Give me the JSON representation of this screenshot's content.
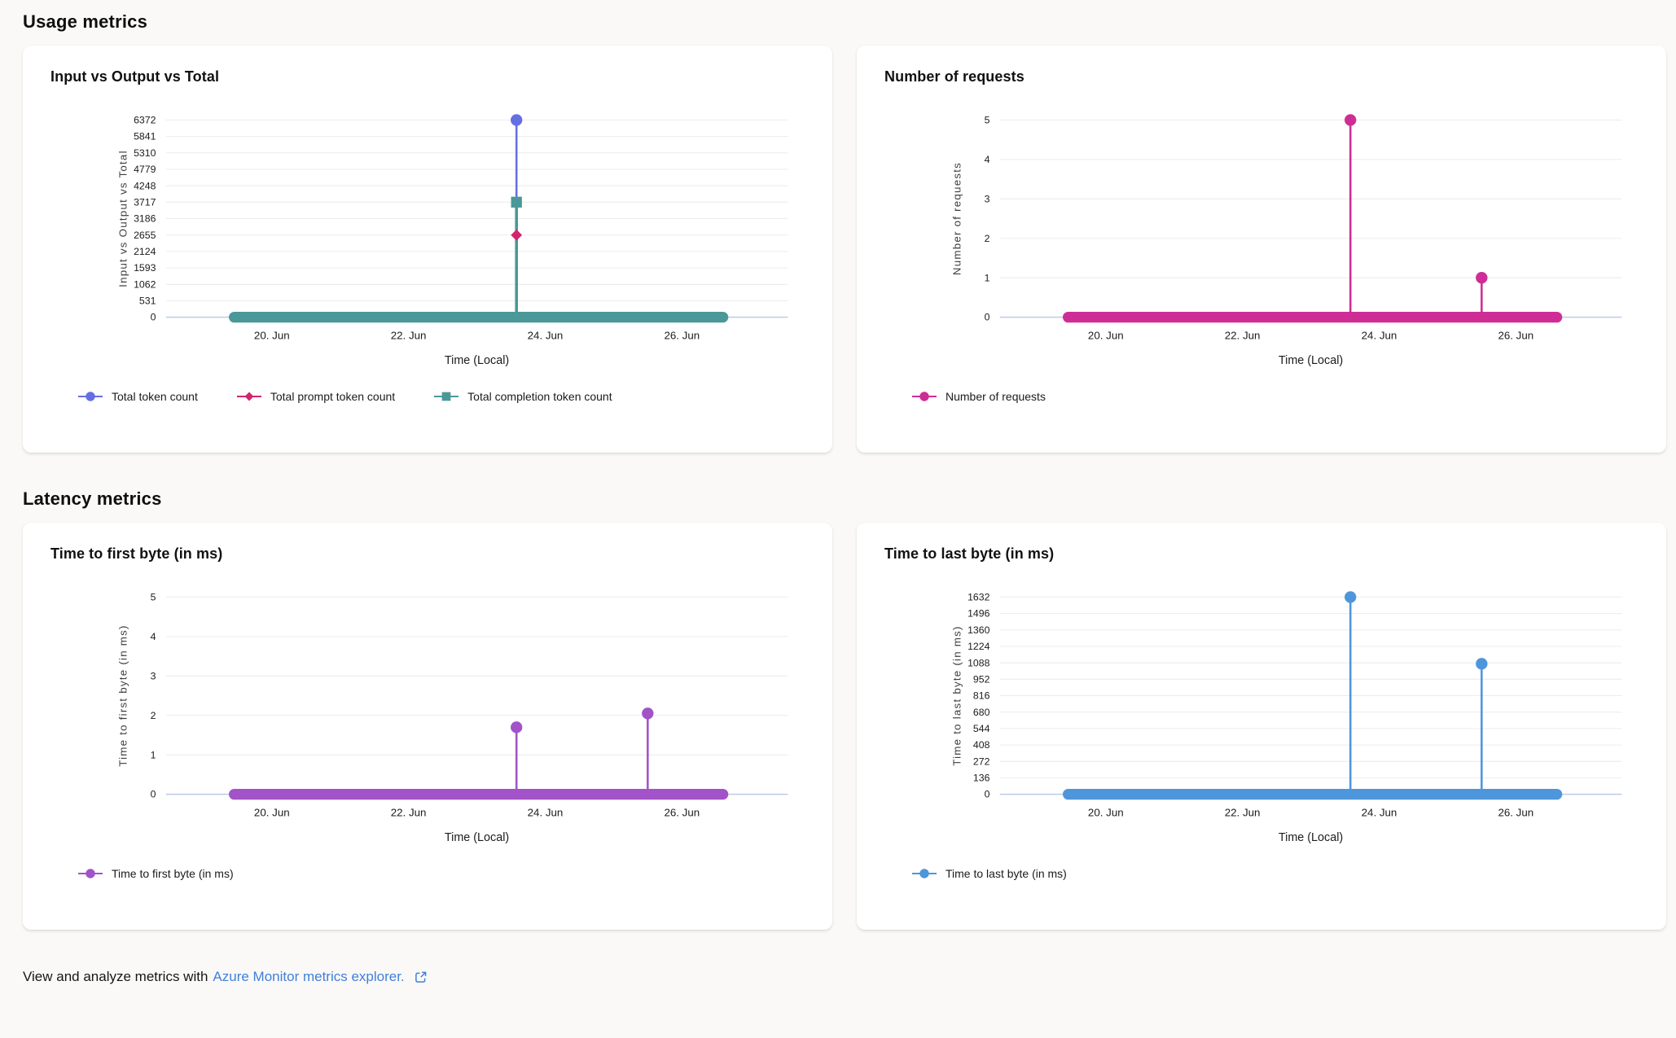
{
  "sections": [
    {
      "title": "Usage metrics"
    },
    {
      "title": "Latency metrics"
    }
  ],
  "footer": {
    "text": "View and analyze metrics with",
    "link_text": "Azure Monitor metrics explorer.",
    "link_color": "#4180d8",
    "icon": "external-link-icon"
  },
  "colors": {
    "total_tokens": "#6470e2",
    "prompt_tokens": "#d3256f",
    "completion_tokens": "#4b9899",
    "requests": "#ce2d96",
    "ttfb": "#a253c7",
    "ttlb": "#4e96db",
    "axis_line": "#bccbe8",
    "gridline": "#ececec"
  },
  "chart_data": [
    {
      "type": "line",
      "title": "Input vs Output vs Total",
      "ylabel": "Input vs Output vs Total",
      "xlabel": "Time (Local)",
      "grid": true,
      "legend_position": "bottom",
      "x_domain": [
        18.45,
        27.55
      ],
      "x_ticks": [
        {
          "day": 20,
          "label": "20. Jun"
        },
        {
          "day": 22,
          "label": "22. Jun"
        },
        {
          "day": 24,
          "label": "24. Jun"
        },
        {
          "day": 26,
          "label": "26. Jun"
        }
      ],
      "ylim": [
        0,
        6372
      ],
      "y_ticks": [
        0,
        531,
        1062,
        1593,
        2124,
        2655,
        3186,
        3717,
        4248,
        4779,
        5310,
        5841,
        6372
      ],
      "baseline": {
        "from_day": 19.45,
        "to_day": 26.6,
        "value": 0
      },
      "baseline_bar_color": "#4b9899",
      "series": [
        {
          "name": "Total token count",
          "color": "#6470e2",
          "marker": "circle",
          "spike_width": 2.5,
          "baseline_value": 0,
          "spikes": [
            {
              "day": 23.58,
              "value": 6372
            }
          ]
        },
        {
          "name": "Total prompt token count",
          "color": "#d3256f",
          "marker": "diamond",
          "spike_width": 2,
          "baseline_value": 0,
          "spikes": [
            {
              "day": 23.58,
              "value": 2655
            }
          ]
        },
        {
          "name": "Total completion token count",
          "color": "#4b9899",
          "marker": "square",
          "spike_width": 3.5,
          "baseline_value": 0,
          "spikes": [
            {
              "day": 23.58,
              "value": 3717
            }
          ]
        }
      ]
    },
    {
      "type": "line",
      "title": "Number of requests",
      "ylabel": "Number of requests",
      "xlabel": "Time (Local)",
      "grid": true,
      "legend_position": "bottom",
      "x_domain": [
        18.45,
        27.55
      ],
      "x_ticks": [
        {
          "day": 20,
          "label": "20. Jun"
        },
        {
          "day": 22,
          "label": "22. Jun"
        },
        {
          "day": 24,
          "label": "24. Jun"
        },
        {
          "day": 26,
          "label": "26. Jun"
        }
      ],
      "ylim": [
        0,
        5
      ],
      "y_ticks": [
        0,
        1,
        2,
        3,
        4,
        5
      ],
      "baseline": {
        "from_day": 19.45,
        "to_day": 26.6,
        "value": 0
      },
      "baseline_bar_color": "#ce2d96",
      "series": [
        {
          "name": "Number of requests",
          "color": "#ce2d96",
          "marker": "circle",
          "spike_width": 2.5,
          "baseline_value": 0,
          "spikes": [
            {
              "day": 23.58,
              "value": 5
            },
            {
              "day": 25.5,
              "value": 1
            }
          ]
        }
      ]
    },
    {
      "type": "line",
      "title": "Time to first byte (in ms)",
      "ylabel": "Time to first byte (in ms)",
      "xlabel": "Time (Local)",
      "grid": true,
      "legend_position": "bottom",
      "x_domain": [
        18.45,
        27.55
      ],
      "x_ticks": [
        {
          "day": 20,
          "label": "20. Jun"
        },
        {
          "day": 22,
          "label": "22. Jun"
        },
        {
          "day": 24,
          "label": "24. Jun"
        },
        {
          "day": 26,
          "label": "26. Jun"
        }
      ],
      "ylim": [
        0,
        5
      ],
      "y_ticks": [
        0,
        1,
        2,
        3,
        4,
        5
      ],
      "baseline": {
        "from_day": 19.45,
        "to_day": 26.6,
        "value": 0
      },
      "baseline_bar_color": "#a253c7",
      "series": [
        {
          "name": "Time to first byte (in ms)",
          "color": "#a253c7",
          "marker": "circle",
          "spike_width": 2.5,
          "baseline_value": 0,
          "spikes": [
            {
              "day": 23.58,
              "value": 1.7
            },
            {
              "day": 25.5,
              "value": 2.05
            }
          ]
        }
      ]
    },
    {
      "type": "line",
      "title": "Time to last byte (in ms)",
      "ylabel": "Time to last byte (in ms)",
      "xlabel": "Time (Local)",
      "grid": true,
      "legend_position": "bottom",
      "x_domain": [
        18.45,
        27.55
      ],
      "x_ticks": [
        {
          "day": 20,
          "label": "20. Jun"
        },
        {
          "day": 22,
          "label": "22. Jun"
        },
        {
          "day": 24,
          "label": "24. Jun"
        },
        {
          "day": 26,
          "label": "26. Jun"
        }
      ],
      "ylim": [
        0,
        1632
      ],
      "y_ticks": [
        0,
        136,
        272,
        408,
        544,
        680,
        816,
        952,
        1088,
        1224,
        1360,
        1496,
        1632
      ],
      "baseline": {
        "from_day": 19.45,
        "to_day": 26.6,
        "value": 0
      },
      "baseline_bar_color": "#4e96db",
      "series": [
        {
          "name": "Time to last byte (in ms)",
          "color": "#4e96db",
          "marker": "circle",
          "spike_width": 2.5,
          "baseline_value": 0,
          "spikes": [
            {
              "day": 23.58,
              "value": 1632
            },
            {
              "day": 25.5,
              "value": 1080
            }
          ]
        }
      ]
    }
  ]
}
